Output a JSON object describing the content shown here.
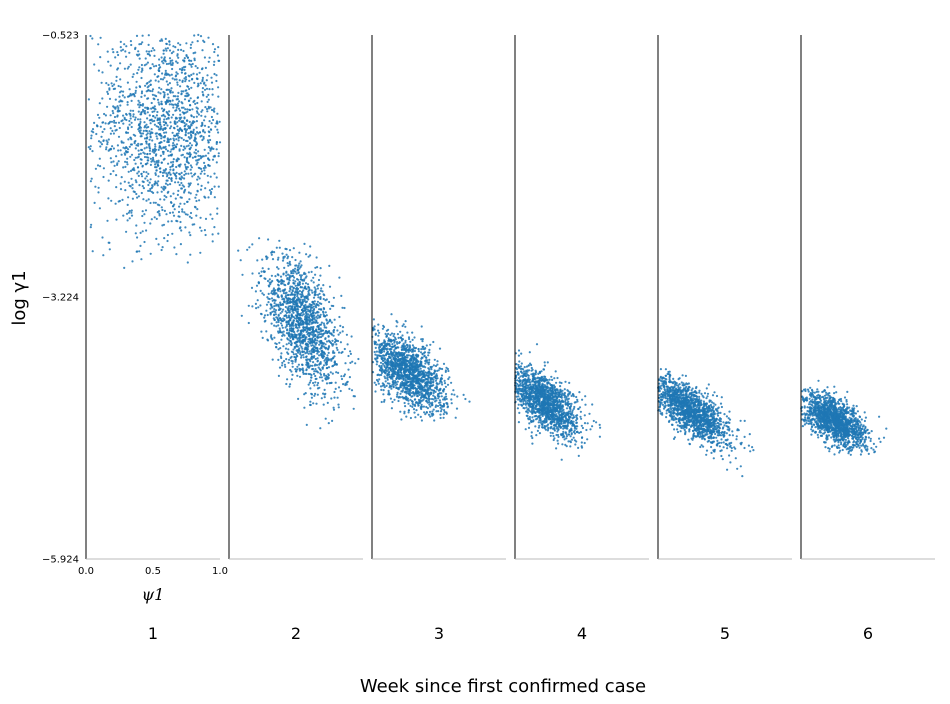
{
  "chart_data": {
    "type": "scatter",
    "title": "",
    "xlabel": "Week since first confirmed case",
    "ylabel": "log γ1",
    "ylim": [
      -5.924,
      -0.523
    ],
    "yticks": [
      "−0.523",
      "−3.224",
      "−5.924"
    ],
    "panel_xlabel": "ψ1",
    "panel_xlim": [
      0.0,
      1.0
    ],
    "panel_xticks": [
      "0.0",
      "0.5",
      "1.0"
    ],
    "point_color": "#1f77b4",
    "grid": false,
    "panels": [
      {
        "label": "1",
        "n": 1500,
        "x_center": 0.6,
        "x_spread": 0.27,
        "y_center": -1.5,
        "y_spread": 0.55,
        "corr": -0.05,
        "x_range": [
          0.02,
          1.0
        ],
        "y_range": [
          -2.95,
          -0.52
        ]
      },
      {
        "label": "2",
        "n": 1500,
        "x_center": 0.55,
        "x_spread": 0.15,
        "y_center": -3.5,
        "y_spread": 0.35,
        "corr": -0.55,
        "x_range": [
          0.05,
          0.98
        ],
        "y_range": [
          -4.7,
          -2.6
        ]
      },
      {
        "label": "3",
        "n": 1500,
        "x_center": 0.27,
        "x_spread": 0.14,
        "y_center": -4.0,
        "y_spread": 0.2,
        "corr": -0.55,
        "x_range": [
          0.0,
          0.95
        ],
        "y_range": [
          -4.5,
          -3.4
        ]
      },
      {
        "label": "4",
        "n": 1500,
        "x_center": 0.22,
        "x_spread": 0.13,
        "y_center": -4.3,
        "y_spread": 0.18,
        "corr": -0.6,
        "x_range": [
          0.0,
          0.8
        ],
        "y_range": [
          -5.0,
          -3.7
        ]
      },
      {
        "label": "5",
        "n": 1500,
        "x_center": 0.25,
        "x_spread": 0.14,
        "y_center": -4.4,
        "y_spread": 0.17,
        "corr": -0.7,
        "x_range": [
          0.0,
          0.87
        ],
        "y_range": [
          -5.3,
          -3.95
        ]
      },
      {
        "label": "6",
        "n": 1500,
        "x_center": 0.25,
        "x_spread": 0.12,
        "y_center": -4.5,
        "y_spread": 0.14,
        "corr": -0.6,
        "x_range": [
          0.0,
          0.75
        ],
        "y_range": [
          -4.85,
          -4.0
        ]
      }
    ]
  }
}
